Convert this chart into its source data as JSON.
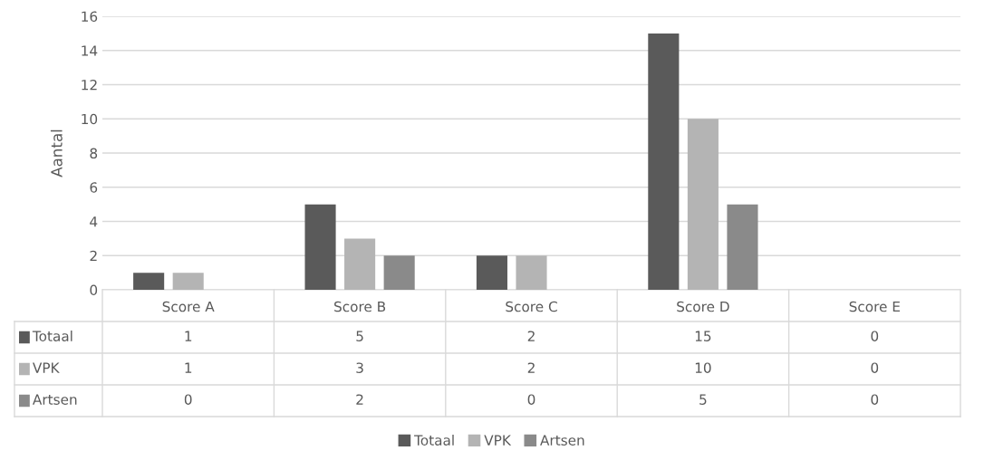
{
  "chart_data": {
    "type": "bar",
    "ylabel": "Aantal",
    "categories": [
      "Score A",
      "Score B",
      "Score C",
      "Score D",
      "Score E"
    ],
    "series": [
      {
        "name": "Totaal",
        "color": "#5a5a5a",
        "values": [
          1,
          5,
          2,
          15,
          0
        ]
      },
      {
        "name": "VPK",
        "color": "#b4b4b4",
        "values": [
          1,
          3,
          2,
          10,
          0
        ]
      },
      {
        "name": "Artsen",
        "color": "#8a8a8a",
        "values": [
          0,
          2,
          0,
          5,
          0
        ]
      }
    ],
    "ylim": [
      0,
      16
    ],
    "yticks": [
      0,
      2,
      4,
      6,
      8,
      10,
      12,
      14,
      16
    ],
    "grid": "y",
    "legend": "bottom",
    "data_labels": true
  }
}
